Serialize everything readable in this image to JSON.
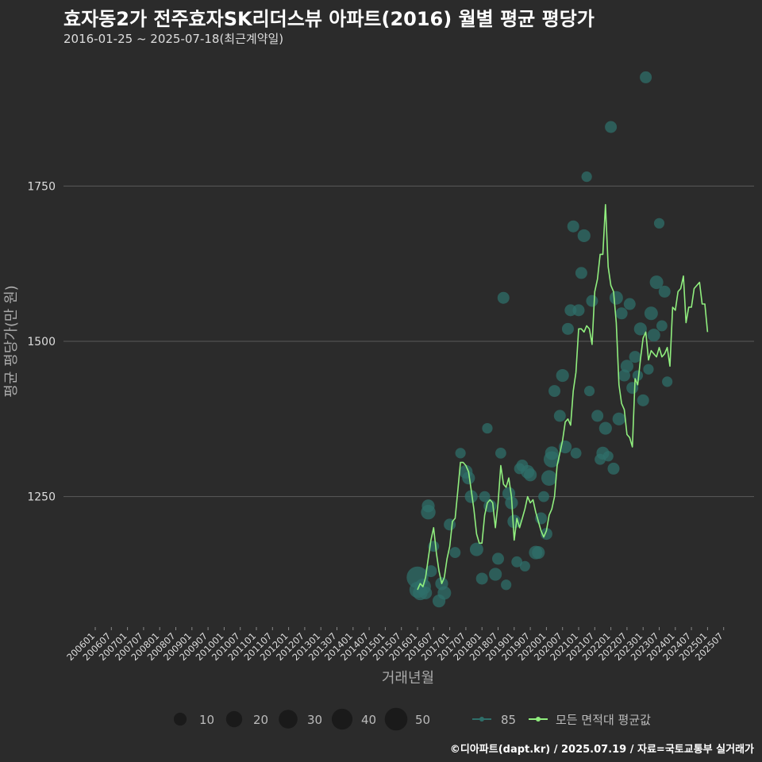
{
  "title": "효자동2가 전주효자SK리더스뷰 아파트(2016) 월별 평균 평당가",
  "subtitle": "2016-01-25 ~ 2025-07-18(최근계약일)",
  "footer": "©디아파트(dapt.kr) / 2025.07.19 / 자료=국토교통부 실거래가",
  "colors": {
    "background": "#2b2b2b",
    "line": "#90ee7e",
    "point": "#2f6f6a",
    "grid": "#5a5a5a",
    "text": "#dddddd"
  },
  "chart_data": {
    "type": "line",
    "xlabel": "거래년월",
    "ylabel": "평균 평당가(만 원)",
    "ylim": [
      1040,
      1960
    ],
    "y_ticks": [
      1250,
      1500,
      1750
    ],
    "x_tick_labels": [
      "200601",
      "200607",
      "200701",
      "200707",
      "200801",
      "200807",
      "200901",
      "200907",
      "201001",
      "201007",
      "201101",
      "201107",
      "201201",
      "201207",
      "201301",
      "201307",
      "201401",
      "201407",
      "201501",
      "201507",
      "201601",
      "201607",
      "201701",
      "201707",
      "201801",
      "201807",
      "201901",
      "201907",
      "202001",
      "202007",
      "202101",
      "202107",
      "202201",
      "202207",
      "202301",
      "202307",
      "202401",
      "202407",
      "202501",
      "202507"
    ],
    "legend": {
      "size_labels": [
        "10",
        "20",
        "30",
        "40",
        "50"
      ],
      "series_labels": [
        "85",
        "모든 면적대 평균값"
      ]
    },
    "average_line": {
      "name": "모든 면적대 평균값",
      "points": [
        [
          "2016-01",
          1100
        ],
        [
          "2016-02",
          1110
        ],
        [
          "2016-03",
          1105
        ],
        [
          "2016-04",
          1120
        ],
        [
          "2016-05",
          1150
        ],
        [
          "2016-06",
          1180
        ],
        [
          "2016-07",
          1200
        ],
        [
          "2016-08",
          1160
        ],
        [
          "2016-09",
          1130
        ],
        [
          "2016-10",
          1110
        ],
        [
          "2016-11",
          1120
        ],
        [
          "2016-12",
          1150
        ],
        [
          "2017-01",
          1170
        ],
        [
          "2017-02",
          1210
        ],
        [
          "2017-03",
          1215
        ],
        [
          "2017-04",
          1260
        ],
        [
          "2017-05",
          1305
        ],
        [
          "2017-06",
          1305
        ],
        [
          "2017-07",
          1300
        ],
        [
          "2017-08",
          1290
        ],
        [
          "2017-09",
          1260
        ],
        [
          "2017-10",
          1230
        ],
        [
          "2017-11",
          1190
        ],
        [
          "2017-12",
          1175
        ],
        [
          "2018-01",
          1175
        ],
        [
          "2018-02",
          1220
        ],
        [
          "2018-03",
          1240
        ],
        [
          "2018-04",
          1245
        ],
        [
          "2018-05",
          1240
        ],
        [
          "2018-06",
          1200
        ],
        [
          "2018-07",
          1240
        ],
        [
          "2018-08",
          1300
        ],
        [
          "2018-09",
          1270
        ],
        [
          "2018-10",
          1265
        ],
        [
          "2018-11",
          1280
        ],
        [
          "2018-12",
          1250
        ],
        [
          "2019-01",
          1180
        ],
        [
          "2019-02",
          1215
        ],
        [
          "2019-03",
          1200
        ],
        [
          "2019-04",
          1215
        ],
        [
          "2019-05",
          1230
        ],
        [
          "2019-06",
          1250
        ],
        [
          "2019-07",
          1240
        ],
        [
          "2019-08",
          1245
        ],
        [
          "2019-09",
          1225
        ],
        [
          "2019-10",
          1210
        ],
        [
          "2019-11",
          1195
        ],
        [
          "2019-12",
          1185
        ],
        [
          "2020-01",
          1195
        ],
        [
          "2020-02",
          1220
        ],
        [
          "2020-03",
          1230
        ],
        [
          "2020-04",
          1250
        ],
        [
          "2020-05",
          1300
        ],
        [
          "2020-06",
          1320
        ],
        [
          "2020-07",
          1340
        ],
        [
          "2020-08",
          1370
        ],
        [
          "2020-09",
          1375
        ],
        [
          "2020-10",
          1365
        ],
        [
          "2020-11",
          1420
        ],
        [
          "2020-12",
          1450
        ],
        [
          "2021-01",
          1520
        ],
        [
          "2021-02",
          1520
        ],
        [
          "2021-03",
          1515
        ],
        [
          "2021-04",
          1525
        ],
        [
          "2021-05",
          1520
        ],
        [
          "2021-06",
          1495
        ],
        [
          "2021-07",
          1580
        ],
        [
          "2021-08",
          1600
        ],
        [
          "2021-09",
          1640
        ],
        [
          "2021-10",
          1640
        ],
        [
          "2021-11",
          1720
        ],
        [
          "2021-12",
          1620
        ],
        [
          "2022-01",
          1590
        ],
        [
          "2022-02",
          1580
        ],
        [
          "2022-03",
          1530
        ],
        [
          "2022-04",
          1430
        ],
        [
          "2022-05",
          1400
        ],
        [
          "2022-06",
          1390
        ],
        [
          "2022-07",
          1350
        ],
        [
          "2022-08",
          1345
        ],
        [
          "2022-09",
          1330
        ],
        [
          "2022-10",
          1440
        ],
        [
          "2022-11",
          1430
        ],
        [
          "2022-12",
          1470
        ],
        [
          "2023-01",
          1505
        ],
        [
          "2023-02",
          1515
        ],
        [
          "2023-03",
          1470
        ],
        [
          "2023-04",
          1485
        ],
        [
          "2023-05",
          1480
        ],
        [
          "2023-06",
          1475
        ],
        [
          "2023-07",
          1490
        ],
        [
          "2023-08",
          1475
        ],
        [
          "2023-09",
          1480
        ],
        [
          "2023-10",
          1490
        ],
        [
          "2023-11",
          1460
        ],
        [
          "2023-12",
          1555
        ],
        [
          "2024-01",
          1550
        ],
        [
          "2024-02",
          1580
        ],
        [
          "2024-03",
          1585
        ],
        [
          "2024-04",
          1605
        ],
        [
          "2024-05",
          1530
        ],
        [
          "2024-06",
          1555
        ],
        [
          "2024-07",
          1555
        ],
        [
          "2024-08",
          1585
        ],
        [
          "2024-09",
          1590
        ],
        [
          "2024-10",
          1595
        ],
        [
          "2024-11",
          1560
        ],
        [
          "2024-12",
          1560
        ],
        [
          "2025-01",
          1515
        ]
      ]
    },
    "transactions": {
      "name": "85",
      "points": [
        [
          "2016-01",
          1100,
          20
        ],
        [
          "2016-01",
          1120,
          45
        ],
        [
          "2016-02",
          1095,
          15
        ],
        [
          "2016-03",
          1105,
          20
        ],
        [
          "2016-04",
          1095,
          10
        ],
        [
          "2016-05",
          1225,
          15
        ],
        [
          "2016-05",
          1235,
          10
        ],
        [
          "2016-06",
          1130,
          8
        ],
        [
          "2016-07",
          1170,
          6
        ],
        [
          "2016-09",
          1082,
          10
        ],
        [
          "2016-10",
          1110,
          10
        ],
        [
          "2016-11",
          1095,
          12
        ],
        [
          "2017-01",
          1205,
          8
        ],
        [
          "2017-03",
          1160,
          6
        ],
        [
          "2017-05",
          1320,
          5
        ],
        [
          "2017-07",
          1290,
          12
        ],
        [
          "2017-08",
          1280,
          10
        ],
        [
          "2017-09",
          1250,
          10
        ],
        [
          "2017-11",
          1165,
          12
        ],
        [
          "2018-01",
          1118,
          8
        ],
        [
          "2018-02",
          1250,
          6
        ],
        [
          "2018-03",
          1360,
          5
        ],
        [
          "2018-04",
          1235,
          10
        ],
        [
          "2018-06",
          1125,
          10
        ],
        [
          "2018-07",
          1150,
          8
        ],
        [
          "2018-08",
          1320,
          6
        ],
        [
          "2018-09",
          1570,
          8
        ],
        [
          "2018-10",
          1108,
          5
        ],
        [
          "2018-11",
          1255,
          10
        ],
        [
          "2018-12",
          1240,
          10
        ],
        [
          "2019-01",
          1210,
          12
        ],
        [
          "2019-02",
          1145,
          6
        ],
        [
          "2019-03",
          1295,
          6
        ],
        [
          "2019-04",
          1300,
          8
        ],
        [
          "2019-05",
          1138,
          5
        ],
        [
          "2019-06",
          1290,
          12
        ],
        [
          "2019-07",
          1285,
          10
        ],
        [
          "2019-09",
          1160,
          12
        ],
        [
          "2019-10",
          1160,
          10
        ],
        [
          "2019-11",
          1215,
          8
        ],
        [
          "2019-12",
          1250,
          6
        ],
        [
          "2020-01",
          1190,
          8
        ],
        [
          "2020-02",
          1280,
          18
        ],
        [
          "2020-03",
          1320,
          12
        ],
        [
          "2020-03",
          1310,
          20
        ],
        [
          "2020-04",
          1420,
          8
        ],
        [
          "2020-06",
          1380,
          8
        ],
        [
          "2020-07",
          1445,
          10
        ],
        [
          "2020-08",
          1330,
          10
        ],
        [
          "2020-09",
          1520,
          8
        ],
        [
          "2020-10",
          1550,
          8
        ],
        [
          "2020-11",
          1685,
          8
        ],
        [
          "2020-12",
          1320,
          6
        ],
        [
          "2021-01",
          1550,
          8
        ],
        [
          "2021-02",
          1610,
          8
        ],
        [
          "2021-03",
          1670,
          10
        ],
        [
          "2021-04",
          1765,
          5
        ],
        [
          "2021-05",
          1420,
          5
        ],
        [
          "2021-06",
          1565,
          8
        ],
        [
          "2021-08",
          1380,
          8
        ],
        [
          "2021-09",
          1310,
          6
        ],
        [
          "2021-10",
          1320,
          10
        ],
        [
          "2021-11",
          1360,
          10
        ],
        [
          "2021-12",
          1315,
          5
        ],
        [
          "2022-01",
          1845,
          8
        ],
        [
          "2022-02",
          1295,
          8
        ],
        [
          "2022-03",
          1570,
          12
        ],
        [
          "2022-04",
          1375,
          10
        ],
        [
          "2022-05",
          1545,
          8
        ],
        [
          "2022-06",
          1445,
          8
        ],
        [
          "2022-07",
          1460,
          10
        ],
        [
          "2022-08",
          1560,
          8
        ],
        [
          "2022-09",
          1425,
          8
        ],
        [
          "2022-10",
          1475,
          8
        ],
        [
          "2022-11",
          1445,
          5
        ],
        [
          "2022-12",
          1520,
          10
        ],
        [
          "2023-01",
          1405,
          8
        ],
        [
          "2023-02",
          1925,
          8
        ],
        [
          "2023-03",
          1455,
          5
        ],
        [
          "2023-04",
          1545,
          12
        ],
        [
          "2023-05",
          1510,
          10
        ],
        [
          "2023-06",
          1595,
          12
        ],
        [
          "2023-07",
          1690,
          5
        ],
        [
          "2023-08",
          1525,
          6
        ],
        [
          "2023-09",
          1580,
          8
        ],
        [
          "2023-10",
          1435,
          5
        ]
      ]
    }
  }
}
